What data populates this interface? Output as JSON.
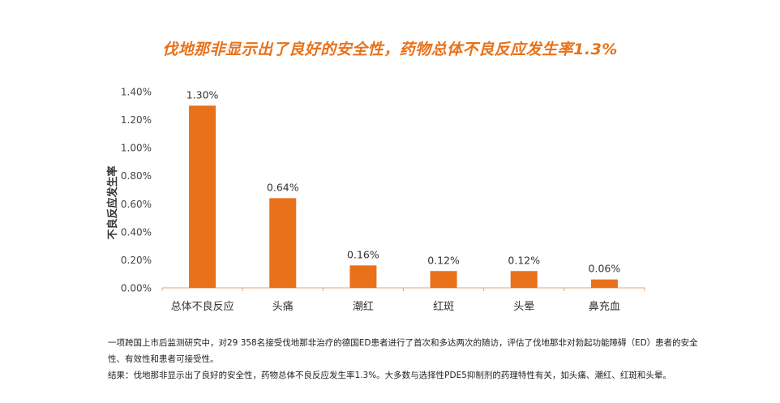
{
  "title": "伐地那非显示出了良好的安全性，药物总体不良反应发生率1.3%",
  "chart_data": {
    "type": "bar",
    "categories": [
      "总体不良反应",
      "头痛",
      "潮红",
      "红斑",
      "头晕",
      "鼻充血"
    ],
    "values": [
      1.3,
      0.64,
      0.16,
      0.12,
      0.12,
      0.06
    ],
    "data_labels": [
      "1.30%",
      "0.64%",
      "0.16%",
      "0.12%",
      "0.12%",
      "0.06%"
    ],
    "ylabel": "不良反应发生率",
    "ylim": [
      0,
      1.4
    ],
    "yticks": [
      0,
      0.2,
      0.4,
      0.6,
      0.8,
      1.0,
      1.2,
      1.4
    ],
    "ytick_labels": [
      "0.00%",
      "0.20%",
      "0.40%",
      "0.60%",
      "0.80%",
      "1.00%",
      "1.20%",
      "1.40%"
    ],
    "bar_color": "#E8711A",
    "grid": false
  },
  "notes": {
    "study": "一项跨国上市后监测研究中，对29 358名接受伐地那非治疗的德国ED患者进行了首次和多达两次的随访，评估了伐地那非对勃起功能障碍（ED）患者的安全性、有效性和患者可接受性。",
    "conclusion": "结果：伐地那非显示出了良好的安全性，药物总体不良反应发生率1.3%。大多数与选择性PDE5抑制剂的药理特性有关，如头痛、潮红、红斑和头晕。"
  }
}
